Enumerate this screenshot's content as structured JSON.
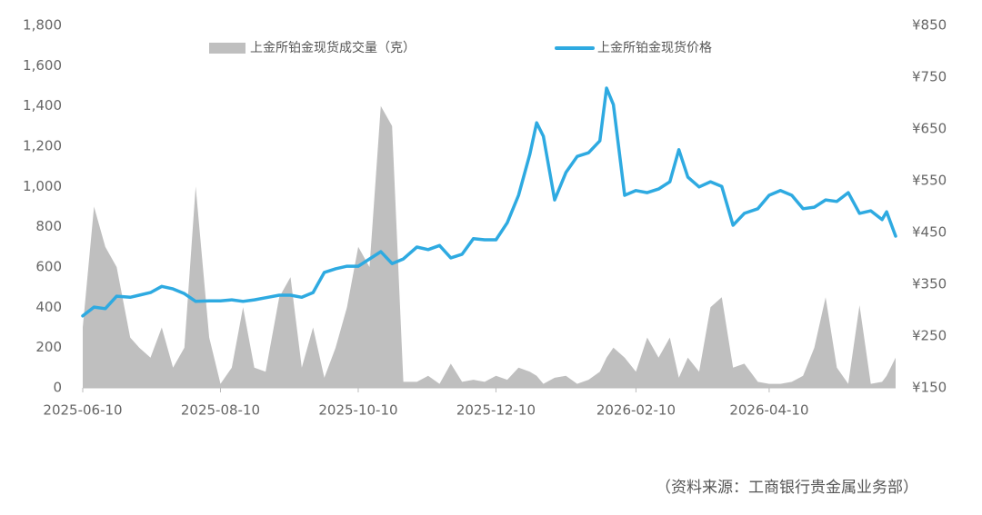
{
  "chart_data": {
    "type": "area-line",
    "x": [
      "2025-06-10",
      "2025-06-15",
      "2025-06-20",
      "2025-06-25",
      "2025-07-01",
      "2025-07-05",
      "2025-07-10",
      "2025-07-15",
      "2025-07-20",
      "2025-07-25",
      "2025-07-30",
      "2025-08-05",
      "2025-08-10",
      "2025-08-15",
      "2025-08-20",
      "2025-08-25",
      "2025-08-30",
      "2025-09-05",
      "2025-09-10",
      "2025-09-15",
      "2025-09-20",
      "2025-09-25",
      "2025-09-30",
      "2025-10-05",
      "2025-10-10",
      "2025-10-15",
      "2025-10-20",
      "2025-10-25",
      "2025-10-30",
      "2025-11-05",
      "2025-11-10",
      "2025-11-15",
      "2025-11-20",
      "2025-11-25",
      "2025-11-30",
      "2025-12-05",
      "2025-12-10",
      "2025-12-15",
      "2025-12-20",
      "2025-12-25",
      "2025-12-28",
      "2025-12-31",
      "2026-01-05",
      "2026-01-10",
      "2026-01-15",
      "2026-01-20",
      "2026-01-25",
      "2026-01-28",
      "2026-01-31",
      "2026-02-05",
      "2026-02-10",
      "2026-02-15",
      "2026-02-20",
      "2026-02-25",
      "2026-03-01",
      "2026-03-05",
      "2026-03-10",
      "2026-03-15",
      "2026-03-20",
      "2026-03-25",
      "2026-03-30",
      "2026-04-05",
      "2026-04-10",
      "2026-04-15",
      "2026-04-20",
      "2026-04-25",
      "2026-04-30",
      "2026-05-05",
      "2026-05-10",
      "2026-05-15",
      "2026-05-20",
      "2026-05-25",
      "2026-05-30",
      "2026-06-01",
      "2026-06-05"
    ],
    "series": [
      {
        "name": "上金所铂金现货成交量（克）",
        "kind": "area",
        "axis": "y",
        "color": "#bfbfbf",
        "values": [
          300,
          900,
          700,
          600,
          250,
          200,
          150,
          300,
          100,
          200,
          1000,
          250,
          20,
          100,
          400,
          100,
          80,
          450,
          550,
          100,
          300,
          50,
          200,
          400,
          700,
          600,
          1400,
          1300,
          30,
          30,
          60,
          20,
          120,
          30,
          40,
          30,
          60,
          40,
          100,
          80,
          60,
          20,
          50,
          60,
          20,
          40,
          80,
          150,
          200,
          150,
          80,
          250,
          150,
          250,
          50,
          150,
          80,
          400,
          450,
          100,
          120,
          30,
          20,
          20,
          30,
          60,
          200,
          450,
          100,
          20,
          410,
          20,
          30,
          60,
          150
        ]
      },
      {
        "name": "上金所铂金现货价格",
        "kind": "line",
        "axis": "y2",
        "color": "#2eaae1",
        "values": [
          289,
          306,
          303,
          327,
          325,
          329,
          334,
          346,
          341,
          332,
          317,
          318,
          318,
          320,
          317,
          320,
          324,
          329,
          329,
          325,
          334,
          373,
          380,
          385,
          385,
          399,
          413,
          390,
          399,
          422,
          417,
          425,
          401,
          408,
          438,
          436,
          436,
          469,
          522,
          601,
          662,
          636,
          513,
          566,
          597,
          604,
          627,
          729,
          697,
          522,
          531,
          527,
          534,
          548,
          610,
          557,
          538,
          548,
          539,
          464,
          487,
          496,
          522,
          531,
          522,
          496,
          499,
          513,
          510,
          527,
          487,
          492,
          475,
          490,
          443
        ]
      }
    ],
    "xlim": [
      "2025-06-10",
      "2026-06-05"
    ],
    "xticks": [
      "2025-06-10",
      "2025-08-10",
      "2025-10-10",
      "2025-12-10",
      "2026-02-10",
      "2026-04-10"
    ],
    "ylim": [
      0,
      1800
    ],
    "yticks": [
      0,
      200,
      400,
      600,
      800,
      {
        "value": 1000,
        "label": "1,000"
      },
      {
        "value": 1200,
        "label": "1,200"
      },
      {
        "value": 1400,
        "label": "1,400"
      },
      {
        "value": 1600,
        "label": "1,600"
      },
      {
        "value": 1800,
        "label": "1,800"
      }
    ],
    "y2lim": [
      150,
      850
    ],
    "y2ticks": [
      {
        "value": 150,
        "label": "¥150"
      },
      {
        "value": 250,
        "label": "¥250"
      },
      {
        "value": 350,
        "label": "¥350"
      },
      {
        "value": 450,
        "label": "¥450"
      },
      {
        "value": 550,
        "label": "¥550"
      },
      {
        "value": 650,
        "label": "¥650"
      },
      {
        "value": 750,
        "label": "¥750"
      },
      {
        "value": 850,
        "label": "¥850"
      }
    ],
    "source": "（资料来源：工商银行贵金属业务部）"
  }
}
